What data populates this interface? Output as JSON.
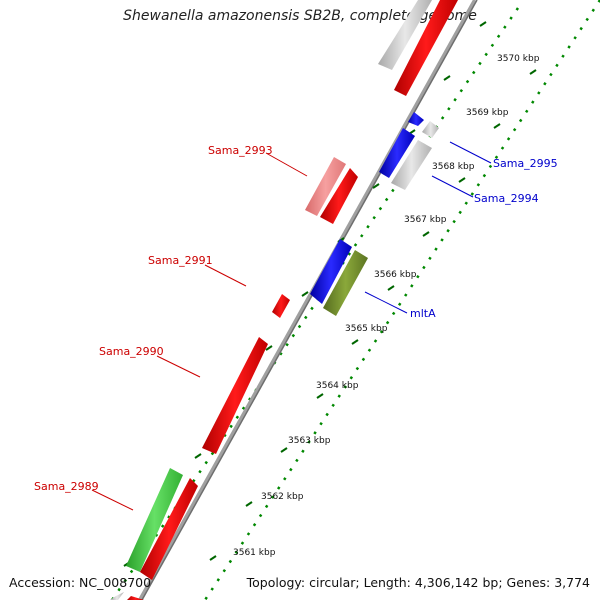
{
  "title": "Shewanella amazonensis SB2B, complete genome",
  "accession": "Accession: NC_008700",
  "topology": "Topology: circular; Length: 4,306,142 bp; Genes: 3,774",
  "scale": {
    "ticks": [
      "3561 kbp",
      "3562 kbp",
      "3563 kbp",
      "3564 kbp",
      "3565 kbp",
      "3566 kbp",
      "3567 kbp",
      "3568 kbp",
      "3569 kbp",
      "3570 kbp"
    ]
  },
  "genes": [
    {
      "label": "Sama_2989",
      "color": "#cc0000"
    },
    {
      "label": "Sama_2990",
      "color": "#cc0000"
    },
    {
      "label": "Sama_2991",
      "color": "#cc0000"
    },
    {
      "label": "Sama_2993",
      "color": "#cc0000"
    },
    {
      "label": "mltA",
      "color": "#0000cc"
    },
    {
      "label": "Sama_2994",
      "color": "#0000cc"
    },
    {
      "label": "Sama_2995",
      "color": "#0000cc"
    }
  ],
  "colors": {
    "forward_cds": "#ff0000",
    "forward_pale": "#f08080",
    "reverse_cds": "#0000ee",
    "green_feature": "#44cc44",
    "olive_feature": "#6b8e23",
    "grey_feature": "#c8c8c8",
    "backbone": "#888888",
    "dots": "#008800"
  }
}
